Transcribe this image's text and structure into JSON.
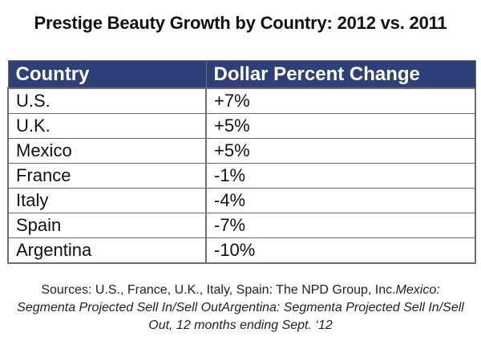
{
  "title": "Prestige Beauty Growth by Country: 2012 vs. 2011",
  "chart_data": {
    "type": "table",
    "title": "Prestige Beauty Growth by Country: 2012 vs. 2011",
    "columns": [
      "Country",
      "Dollar Percent Change"
    ],
    "rows": [
      {
        "country": "U.S.",
        "change": "+7%"
      },
      {
        "country": "U.K.",
        "change": "+5%"
      },
      {
        "country": "Mexico",
        "change": "+5%"
      },
      {
        "country": "France",
        "change": "-1%"
      },
      {
        "country": "Italy",
        "change": "-4%"
      },
      {
        "country": "Spain",
        "change": "-7%"
      },
      {
        "country": "Argentina",
        "change": "-10%"
      }
    ],
    "values": [
      7,
      5,
      5,
      -1,
      -4,
      -7,
      -10
    ]
  },
  "sources": {
    "plain": "Sources: U.S., France, U.K., Italy, Spain: The NPD Group, Inc.",
    "italic": "Mexico: Segmenta Projected Sell In/Sell OutArgentina: Segmenta Projected Sell In/Sell Out, 12 months ending Sept. ‘12"
  },
  "colors": {
    "header_bg": "#2f3f78",
    "header_text": "#ffffff",
    "border": "#6b6b6b"
  }
}
